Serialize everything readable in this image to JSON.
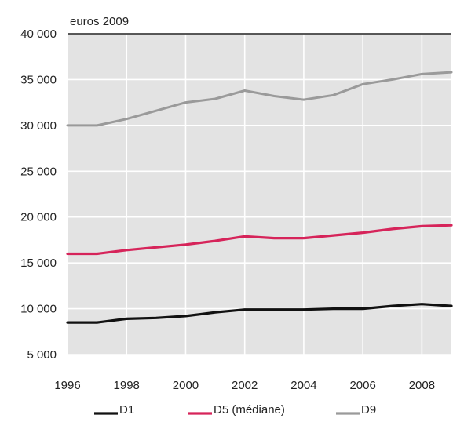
{
  "chart_data": {
    "type": "line",
    "y_unit_label": "euros 2009",
    "x": [
      1996,
      1997,
      1998,
      1999,
      2000,
      2001,
      2002,
      2003,
      2004,
      2005,
      2006,
      2007,
      2008,
      2009
    ],
    "x_ticks": [
      1996,
      1998,
      2000,
      2002,
      2004,
      2006,
      2008
    ],
    "x_tick_labels": [
      "1996",
      "1998",
      "2000",
      "2002",
      "2004",
      "2006",
      "2008"
    ],
    "ylim": [
      5000,
      40000
    ],
    "y_ticks": [
      5000,
      10000,
      15000,
      20000,
      25000,
      30000,
      35000,
      40000
    ],
    "y_tick_labels": [
      "5 000",
      "10 000",
      "15 000",
      "20 000",
      "25 000",
      "30 000",
      "35 000",
      "40 000"
    ],
    "grid": true,
    "legend_position": "bottom",
    "series": [
      {
        "name": "D1",
        "color": "#111111",
        "values": [
          8500,
          8500,
          8900,
          9000,
          9200,
          9600,
          9900,
          9900,
          9900,
          10000,
          10000,
          10300,
          10500,
          10300
        ]
      },
      {
        "name": "D5 (médiane)",
        "color": "#d6245a",
        "values": [
          16000,
          16000,
          16400,
          16700,
          17000,
          17400,
          17900,
          17700,
          17700,
          18000,
          18300,
          18700,
          19000,
          19100
        ]
      },
      {
        "name": "D9",
        "color": "#9a9a9a",
        "values": [
          30000,
          30000,
          30700,
          31600,
          32500,
          32900,
          33800,
          33200,
          32800,
          33300,
          34500,
          35000,
          35600,
          35800
        ]
      }
    ]
  }
}
